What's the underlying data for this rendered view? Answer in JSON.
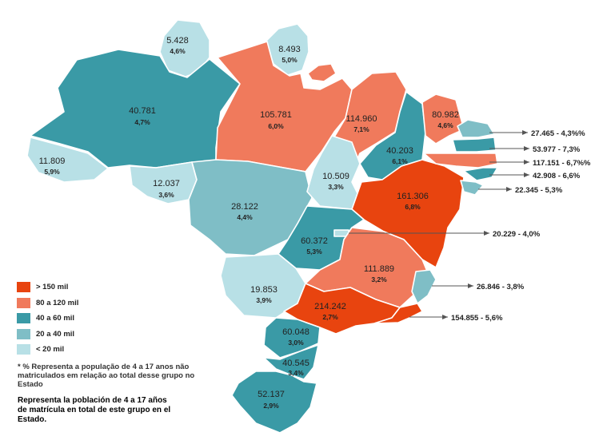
{
  "colors": {
    "gt150": "#e8440f",
    "r80_120": "#f07a5c",
    "r40_80": "#3a9aa6",
    "r20_40": "#7fbec6",
    "lt20": "#b8e0e6"
  },
  "legend": [
    {
      "label": "> 150 mil",
      "class": "gt150"
    },
    {
      "label": "80 a 120 mil",
      "class": "r80_120"
    },
    {
      "label": "40 a 60 mil",
      "class": "r40_80"
    },
    {
      "label": "20 a 40 mil",
      "class": "r20_40"
    },
    {
      "label": "< 20 mil",
      "class": "lt20"
    }
  ],
  "states": [
    {
      "id": "rr",
      "value": "5.428",
      "pct": "4,6%",
      "class": "lt20"
    },
    {
      "id": "ap",
      "value": "8.493",
      "pct": "5,0%",
      "class": "lt20"
    },
    {
      "id": "am",
      "value": "40.781",
      "pct": "4,7%",
      "class": "r40_80"
    },
    {
      "id": "pa",
      "value": "105.781",
      "pct": "6,0%",
      "class": "r80_120"
    },
    {
      "id": "ma",
      "value": "114.960",
      "pct": "7,1%",
      "class": "r80_120"
    },
    {
      "id": "ce",
      "value": "80.982",
      "pct": "4,6%",
      "class": "r80_120"
    },
    {
      "id": "pi",
      "value": "40.203",
      "pct": "6,1%",
      "class": "r40_80"
    },
    {
      "id": "ac",
      "value": "11.809",
      "pct": "5,9%",
      "class": "lt20"
    },
    {
      "id": "ro",
      "value": "12.037",
      "pct": "3,6%",
      "class": "lt20"
    },
    {
      "id": "mt",
      "value": "28.122",
      "pct": "4,4%",
      "class": "r20_40"
    },
    {
      "id": "to",
      "value": "10.509",
      "pct": "3,3%",
      "class": "lt20"
    },
    {
      "id": "ba",
      "value": "161.306",
      "pct": "6,8%",
      "class": "gt150"
    },
    {
      "id": "go",
      "value": "60.372",
      "pct": "5,3%",
      "class": "r40_80"
    },
    {
      "id": "mg",
      "value": "111.889",
      "pct": "3,2%",
      "class": "r80_120"
    },
    {
      "id": "ms",
      "value": "19.853",
      "pct": "3,9%",
      "class": "lt20"
    },
    {
      "id": "sp",
      "value": "214.242",
      "pct": "2,7%",
      "class": "gt150"
    },
    {
      "id": "pr",
      "value": "60.048",
      "pct": "3,0%",
      "class": "r40_80"
    },
    {
      "id": "sc",
      "value": "40.545",
      "pct": "3,4%",
      "class": "r40_80"
    },
    {
      "id": "rs",
      "value": "52.137",
      "pct": "2,9%",
      "class": "r40_80"
    },
    {
      "id": "rn",
      "value": "",
      "pct": "",
      "class": "r20_40"
    },
    {
      "id": "pb",
      "value": "",
      "pct": "",
      "class": "r40_80"
    },
    {
      "id": "pe",
      "value": "",
      "pct": "",
      "class": "r80_120"
    },
    {
      "id": "al",
      "value": "",
      "pct": "",
      "class": "r40_80"
    },
    {
      "id": "se",
      "value": "",
      "pct": "",
      "class": "r20_40"
    },
    {
      "id": "df",
      "value": "",
      "pct": "",
      "class": "lt20"
    },
    {
      "id": "es",
      "value": "",
      "pct": "",
      "class": "r20_40"
    },
    {
      "id": "rj",
      "value": "",
      "pct": "",
      "class": "gt150"
    }
  ],
  "callouts": [
    {
      "text_a": "27.465 - ",
      "text_b": "4,3%%"
    },
    {
      "text_a": "53.977 - ",
      "text_b": "7,3%"
    },
    {
      "text_a": "117.151 - ",
      "text_b": "6,7%%"
    },
    {
      "text_a": "42.908 - ",
      "text_b": "6,6%"
    },
    {
      "text_a": "22.345 - ",
      "text_b": "5,3%"
    },
    {
      "text_a": "20.229 - ",
      "text_b": "4,0%"
    },
    {
      "text_a": "26.846 - ",
      "text_b": "3,8%"
    },
    {
      "text_a": "154.855 - ",
      "text_b": "5,6%"
    }
  ],
  "note_pt": "* % Representa a população de 4 a 17 anos não matriculados em relação ao total desse grupo no Estado",
  "note_es": "Representa la población de 4 a 17 años de matrícula en total de este grupo en el Estado."
}
